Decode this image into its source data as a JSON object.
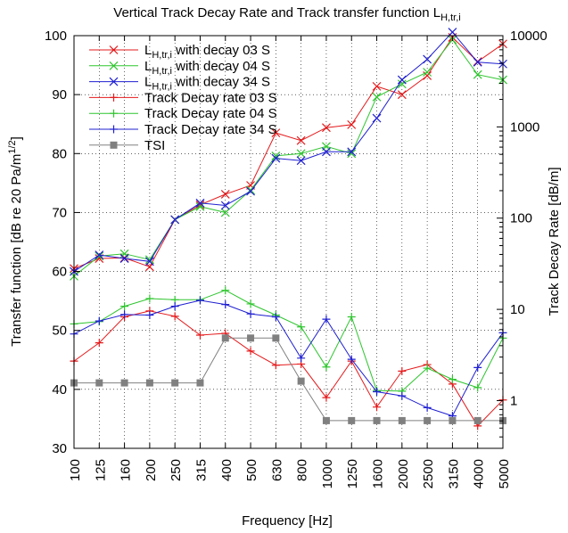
{
  "chart_data": {
    "type": "line",
    "title": "Vertical Track Decay Rate and Track transfer function L",
    "title_subscript": "H,tr,i",
    "xlabel": "Frequency [Hz]",
    "ylabel": "Transfer function [dB re 20 Pa/m",
    "ylabel_superscript": "1/2",
    "ylabel_close": "]",
    "y2label": "Track Decay Rate [dB/m]",
    "categories": [
      "100",
      "125",
      "160",
      "200",
      "250",
      "315",
      "400",
      "500",
      "630",
      "800",
      "1000",
      "1250",
      "1600",
      "2000",
      "2500",
      "3150",
      "4000",
      "5000"
    ],
    "ylim": [
      30,
      100
    ],
    "y_ticks": [
      "30",
      "40",
      "50",
      "60",
      "70",
      "80",
      "90",
      "100"
    ],
    "y2lim": [
      0.3,
      10000
    ],
    "y2_scale": "log",
    "y2_ticks": [
      {
        "value": 1,
        "label": "1"
      },
      {
        "value": 10,
        "label": "10"
      },
      {
        "value": 100,
        "label": "100"
      },
      {
        "value": 1000,
        "label": "1000"
      },
      {
        "value": 10000,
        "label": "10000"
      }
    ],
    "grid": true,
    "legend_position": "top-left",
    "series": [
      {
        "name": "L",
        "name_sub": "H,tr,i",
        "name_rest": " with decay 03 S",
        "axis": "y1",
        "color": "#e41a1c",
        "marker": "x",
        "values": [
          60.5,
          62.2,
          62.3,
          60.8,
          68.8,
          71.3,
          73.1,
          74.6,
          83.5,
          82.2,
          84.4,
          84.9,
          91.4,
          90.0,
          93.2,
          99.7,
          95.6,
          98.6
        ]
      },
      {
        "name": "L",
        "name_sub": "H,tr,i",
        "name_rest": " with decay 04 S",
        "axis": "y1",
        "color": "#2ec52e",
        "marker": "x",
        "values": [
          59.2,
          62.6,
          63.0,
          62.0,
          68.8,
          71.0,
          70.0,
          73.8,
          79.6,
          80.0,
          81.2,
          80.0,
          89.6,
          91.8,
          93.8,
          99.3,
          93.4,
          92.5
        ]
      },
      {
        "name": "L",
        "name_sub": "H,tr,i",
        "name_rest": " with decay 34 S",
        "axis": "y1",
        "color": "#1f1fd1",
        "marker": "x",
        "values": [
          60.0,
          62.8,
          62.2,
          61.7,
          68.8,
          71.6,
          71.2,
          73.6,
          79.2,
          78.8,
          80.3,
          80.3,
          86.0,
          92.5,
          96.0,
          100.6,
          95.5,
          95.2
        ]
      },
      {
        "name": "Track Decay rate 03 S",
        "axis": "y1",
        "color": "#e41a1c",
        "marker": "+",
        "values": [
          44.8,
          47.9,
          52.3,
          53.3,
          52.4,
          49.2,
          49.5,
          46.5,
          44.1,
          44.3,
          38.6,
          44.8,
          37.0,
          43.1,
          44.2,
          40.9,
          33.8,
          38.2
        ]
      },
      {
        "name": "Track Decay rate 04 S",
        "axis": "y1",
        "color": "#2ec52e",
        "marker": "+",
        "values": [
          51.1,
          51.5,
          54.1,
          55.4,
          55.2,
          55.2,
          56.8,
          54.5,
          52.6,
          50.6,
          43.8,
          52.3,
          39.8,
          39.7,
          43.6,
          41.7,
          40.3,
          48.7
        ]
      },
      {
        "name": "Track Decay rate 34 S",
        "axis": "y1",
        "color": "#1f1fd1",
        "marker": "+",
        "values": [
          49.4,
          51.6,
          52.7,
          52.6,
          54.1,
          55.1,
          54.4,
          52.8,
          52.3,
          45.3,
          51.9,
          45.1,
          39.6,
          38.9,
          36.9,
          35.5,
          43.7,
          49.6
        ]
      },
      {
        "name": "TSI",
        "axis": "y1",
        "color": "#808080",
        "marker": "square",
        "values": [
          41.1,
          41.1,
          41.1,
          41.1,
          41.1,
          41.1,
          48.7,
          48.7,
          48.7,
          41.4,
          34.7,
          34.7,
          34.7,
          34.7,
          34.7,
          34.7,
          34.7,
          34.7
        ]
      }
    ]
  }
}
